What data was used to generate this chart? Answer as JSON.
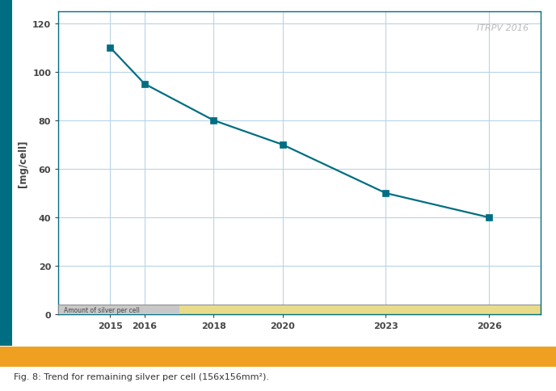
{
  "x_values": [
    2015,
    2016,
    2018,
    2020,
    2023,
    2026
  ],
  "y_values": [
    110,
    95,
    80,
    70,
    50,
    40
  ],
  "line_color": "#006E82",
  "marker_color": "#006E82",
  "ylabel": "[mg/cell]",
  "legend_label": "Amount of silver per cell",
  "watermark_text": "ITRPV 2016",
  "watermark_color": "#BBBBBB",
  "xlim": [
    2013.5,
    2027.5
  ],
  "ylim": [
    0,
    125
  ],
  "yticks": [
    0,
    20,
    40,
    60,
    80,
    100,
    120
  ],
  "xticks": [
    2015,
    2016,
    2018,
    2020,
    2023,
    2026
  ],
  "grid_color": "#B8D4E8",
  "left_bar_color": "#C8C8C8",
  "right_bar_color": "#E8DC8A",
  "bar_text": "Amount of silver per cell",
  "bar_text_color": "#444444",
  "bar_height": 4.0,
  "fig_caption": "Fig. 8: Trend for remaining silver per cell (156x156mm²).",
  "caption_color": "#333333",
  "left_stripe_color": "#006E82",
  "orange_bar_color": "#F0A020",
  "outer_bg_color": "#FFFFFF",
  "plot_bg_color": "#FFFFFF",
  "left_bar_end_year": 2017.0,
  "tick_color": "#444444",
  "spine_color": "#006E82"
}
